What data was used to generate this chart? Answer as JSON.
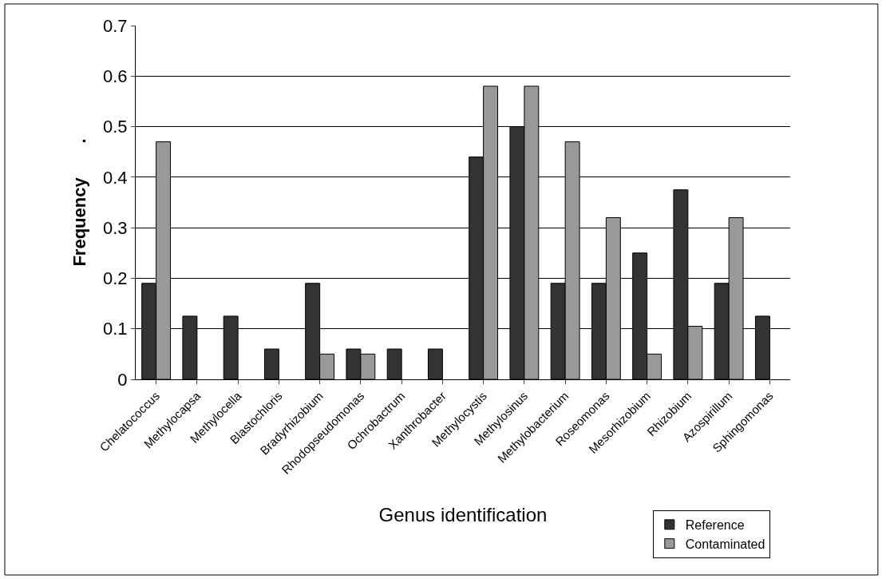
{
  "chart_data": {
    "type": "bar",
    "xlabel": "Genus identification",
    "ylabel": "Frequency       .",
    "categories": [
      "Chelatococcus",
      "Methylocapsa",
      "Methylocella",
      "Blastochloris",
      "Bradyrhizobium",
      "Rhodopseudomonas",
      "Ochrobactrum",
      "Xanthrobacter",
      "Methylocystis",
      "Methylosinus",
      "Methylobacterium",
      "Roseomonas",
      "Mesorhizobium",
      "Rhizobium",
      "Azospirillum",
      "Sphingomonas"
    ],
    "series": [
      {
        "name": "Reference",
        "color": "#333333",
        "values": [
          0.19,
          0.125,
          0.125,
          0.06,
          0.19,
          0.06,
          0.06,
          0.06,
          0.44,
          0.5,
          0.19,
          0.19,
          0.25,
          0.375,
          0.19,
          0.125
        ]
      },
      {
        "name": "Contaminated",
        "color": "#999999",
        "values": [
          0.47,
          null,
          null,
          null,
          0.05,
          0.05,
          null,
          null,
          0.58,
          0.58,
          0.47,
          0.32,
          0.05,
          0.105,
          0.32,
          null
        ]
      }
    ],
    "ylim": [
      0,
      0.7
    ],
    "yticks": [
      0,
      0.1,
      0.2,
      0.3,
      0.4,
      0.5,
      0.6,
      0.7
    ],
    "grid": "y",
    "legend": "bottom right"
  }
}
